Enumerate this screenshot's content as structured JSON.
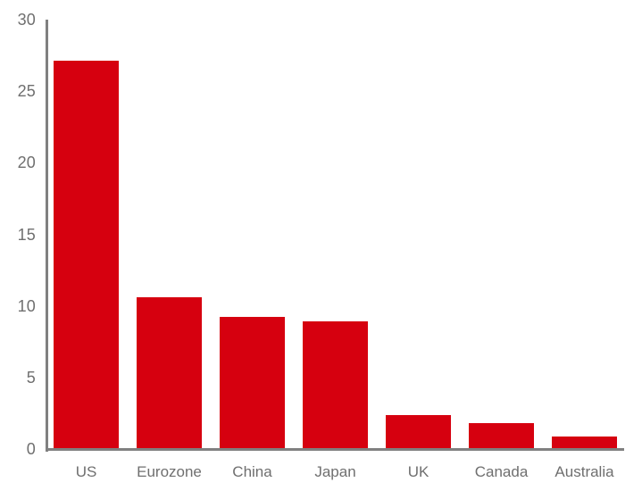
{
  "chart_data": {
    "type": "bar",
    "title": "",
    "xlabel": "",
    "ylabel": "",
    "categories": [
      "US",
      "Eurozone",
      "China",
      "Japan",
      "UK",
      "Canada",
      "Australia"
    ],
    "values": [
      27.1,
      10.6,
      9.2,
      8.9,
      2.4,
      1.8,
      0.9
    ],
    "ylim": [
      0,
      30
    ],
    "yticks": [
      0,
      5,
      10,
      15,
      20,
      25,
      30
    ],
    "grid": false,
    "legend": "none",
    "colors": {
      "bar": "#d6000f",
      "axis_line": "#808080",
      "tick_label": "#6f6f6f",
      "background": "#ffffff"
    }
  }
}
